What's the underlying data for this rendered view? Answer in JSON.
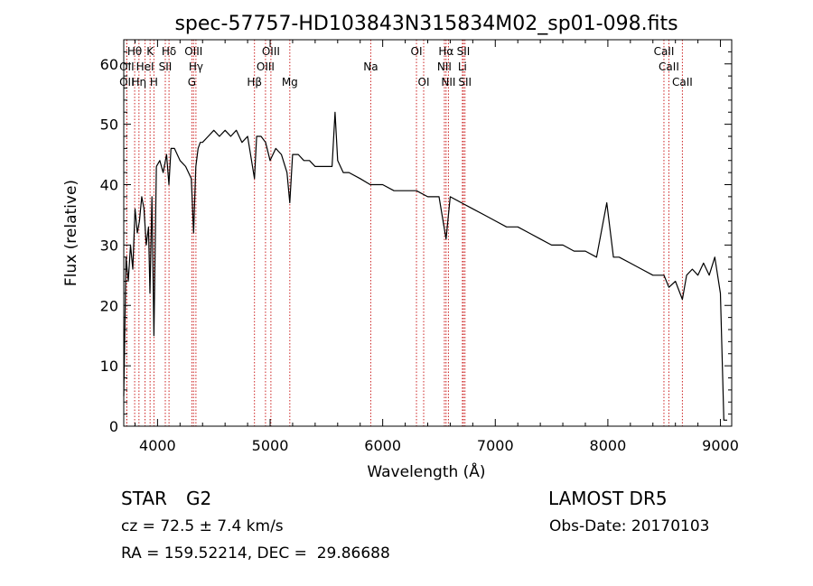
{
  "chart_data": {
    "type": "line",
    "title": "spec-57757-HD103843N315834M02_sp01-098.fits",
    "xlabel": "Wavelength (Å)",
    "ylabel": "Flux (relative)",
    "xlim": [
      3700,
      9100
    ],
    "ylim": [
      0,
      64
    ],
    "x_ticks": [
      4000,
      5000,
      6000,
      7000,
      8000,
      9000
    ],
    "y_ticks": [
      0,
      10,
      20,
      30,
      40,
      50,
      60
    ],
    "grid": false,
    "series": [
      {
        "x": [
          3700,
          3720,
          3740,
          3760,
          3780,
          3800,
          3820,
          3840,
          3860,
          3880,
          3900,
          3920,
          3933,
          3950,
          3968,
          3990,
          4020,
          4050,
          4080,
          4101,
          4120,
          4150,
          4200,
          4250,
          4300,
          4320,
          4340,
          4360,
          4380,
          4400,
          4450,
          4500,
          4550,
          4600,
          4650,
          4700,
          4750,
          4800,
          4861,
          4880,
          4920,
          4960,
          5000,
          5050,
          5100,
          5150,
          5175,
          5200,
          5250,
          5300,
          5350,
          5400,
          5450,
          5500,
          5550,
          5577,
          5600,
          5650,
          5700,
          5800,
          5890,
          5950,
          6000,
          6100,
          6200,
          6300,
          6400,
          6500,
          6563,
          6600,
          6700,
          6800,
          6900,
          7000,
          7100,
          7200,
          7300,
          7400,
          7500,
          7600,
          7700,
          7800,
          7900,
          7990,
          8050,
          8100,
          8200,
          8300,
          8400,
          8498,
          8542,
          8600,
          8662,
          8700,
          8750,
          8800,
          8850,
          8900,
          8950,
          9000,
          9030,
          9060
        ],
        "y": [
          5,
          28,
          24,
          30,
          26,
          36,
          32,
          34,
          38,
          36,
          30,
          33,
          22,
          38,
          15,
          43,
          44,
          42,
          45,
          40,
          46,
          46,
          44,
          43,
          41,
          32,
          43,
          46,
          47,
          47,
          48,
          49,
          48,
          49,
          48,
          49,
          47,
          48,
          41,
          48,
          48,
          47,
          44,
          46,
          45,
          42,
          37,
          45,
          45,
          44,
          44,
          43,
          43,
          43,
          43,
          52,
          44,
          42,
          42,
          41,
          40,
          40,
          40,
          39,
          39,
          39,
          38,
          38,
          31,
          38,
          37,
          36,
          35,
          34,
          33,
          33,
          32,
          31,
          30,
          30,
          29,
          29,
          28,
          37,
          28,
          28,
          27,
          26,
          25,
          25,
          23,
          24,
          21,
          25,
          26,
          25,
          27,
          25,
          28,
          22,
          1,
          1
        ]
      }
    ],
    "lines": [
      {
        "label": "Hθ",
        "x": 3797
      },
      {
        "label": "OII",
        "x": 3727
      },
      {
        "label": "OII",
        "x": 3727
      },
      {
        "label": "Hη",
        "x": 3835
      },
      {
        "label": "HeI",
        "x": 3889
      },
      {
        "label": "K",
        "x": 3934
      },
      {
        "label": "SII",
        "x": 4069
      },
      {
        "label": "H",
        "x": 3968
      },
      {
        "label": "Hδ",
        "x": 4102
      },
      {
        "label": "OIII",
        "x": 4320
      },
      {
        "label": "Hγ",
        "x": 4341
      },
      {
        "label": "G",
        "x": 4305
      },
      {
        "label": "Hβ",
        "x": 4861
      },
      {
        "label": "OIII",
        "x": 5007
      },
      {
        "label": "OIII",
        "x": 4959
      },
      {
        "label": "Mg",
        "x": 5175
      },
      {
        "label": "Na",
        "x": 5894
      },
      {
        "label": "OI",
        "x": 6300
      },
      {
        "label": "OI",
        "x": 6364
      },
      {
        "label": "Hα",
        "x": 6563
      },
      {
        "label": "NII",
        "x": 6548
      },
      {
        "label": "NII",
        "x": 6584
      },
      {
        "label": "SII",
        "x": 6717
      },
      {
        "label": "Li",
        "x": 6708
      },
      {
        "label": "SII",
        "x": 6731
      },
      {
        "label": "CaII",
        "x": 8498
      },
      {
        "label": "CaII",
        "x": 8542
      },
      {
        "label": "CaII",
        "x": 8662
      }
    ]
  },
  "info": {
    "object_class": "STAR",
    "subclass": "G2",
    "survey": "LAMOST DR5",
    "cz": "cz = 72.5 ± 7.4 km/s",
    "obs_date": "Obs-Date: 20170103",
    "coords": "RA = 159.52214, DEC =  29.86688"
  },
  "colors": {
    "line_marker": "#cc2222",
    "spectrum": "#000000"
  }
}
